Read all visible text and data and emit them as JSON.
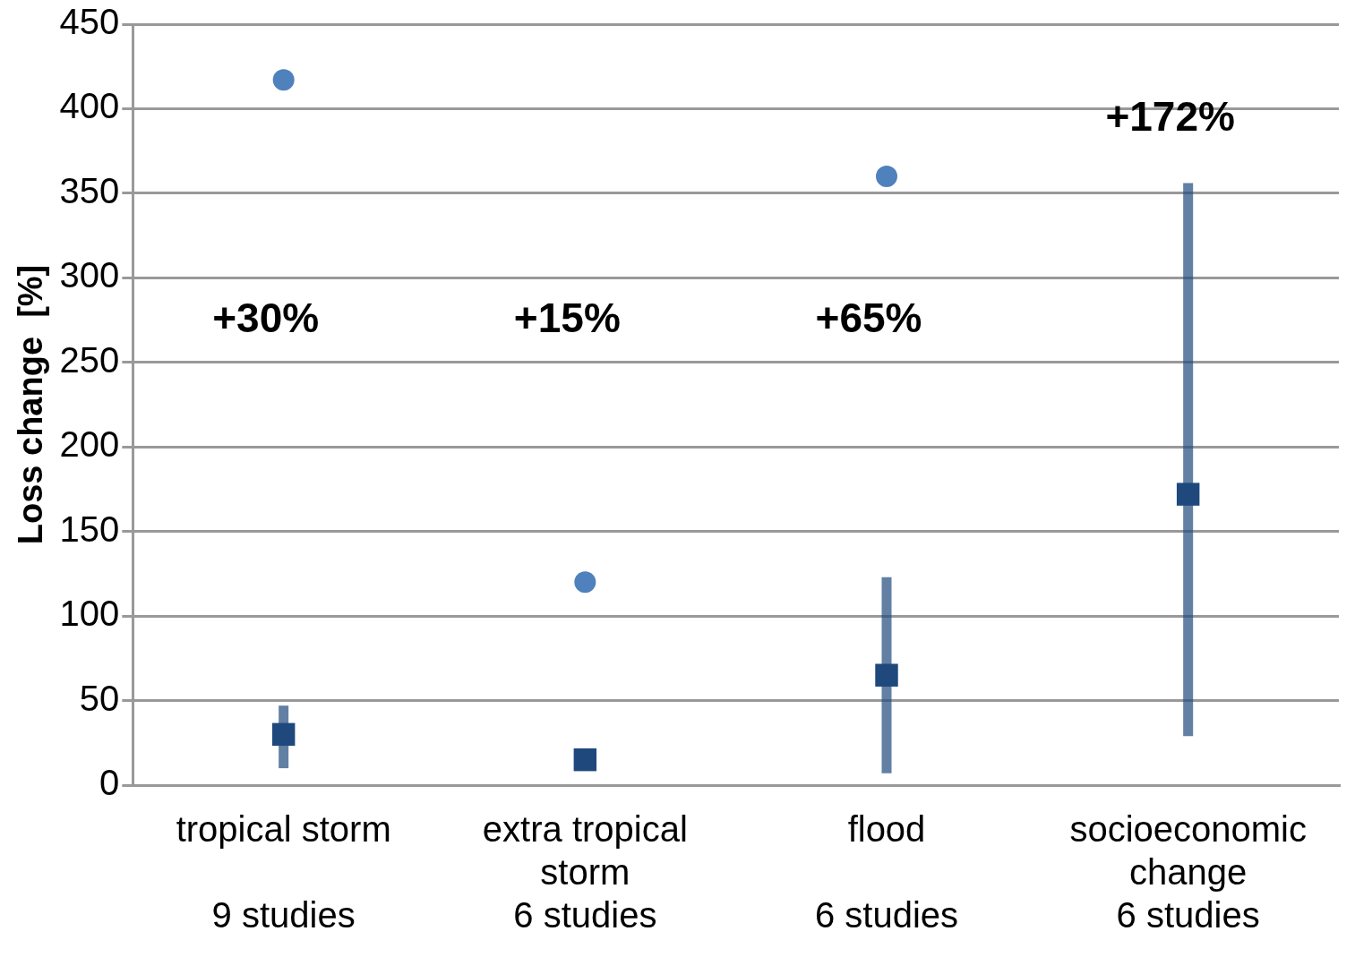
{
  "chart_data": {
    "type": "scatter",
    "ylabel": "Loss change  [%]",
    "categories": [
      "tropical storm\n\n9 studies",
      "extra tropical\nstorm\n6 studies",
      "flood\n\n6 studies",
      "socioeconomic\nchange\n6 studies"
    ],
    "series": [
      {
        "marker": "square",
        "color": "#1f497d",
        "values": [
          30,
          15,
          65,
          172
        ],
        "errors": [
          [
            10,
            47
          ],
          null,
          [
            7,
            123
          ],
          [
            29,
            356
          ]
        ]
      },
      {
        "marker": "circle",
        "color": "#4f81bd",
        "values": [
          417,
          120,
          360,
          null
        ]
      }
    ],
    "annotations": [
      "+30%",
      "+15%",
      "+65%",
      "+172%"
    ],
    "ylim": [
      0,
      450
    ],
    "yticks": [
      0,
      50,
      100,
      150,
      200,
      250,
      300,
      350,
      400,
      450
    ],
    "grid": "y",
    "legend": false
  }
}
